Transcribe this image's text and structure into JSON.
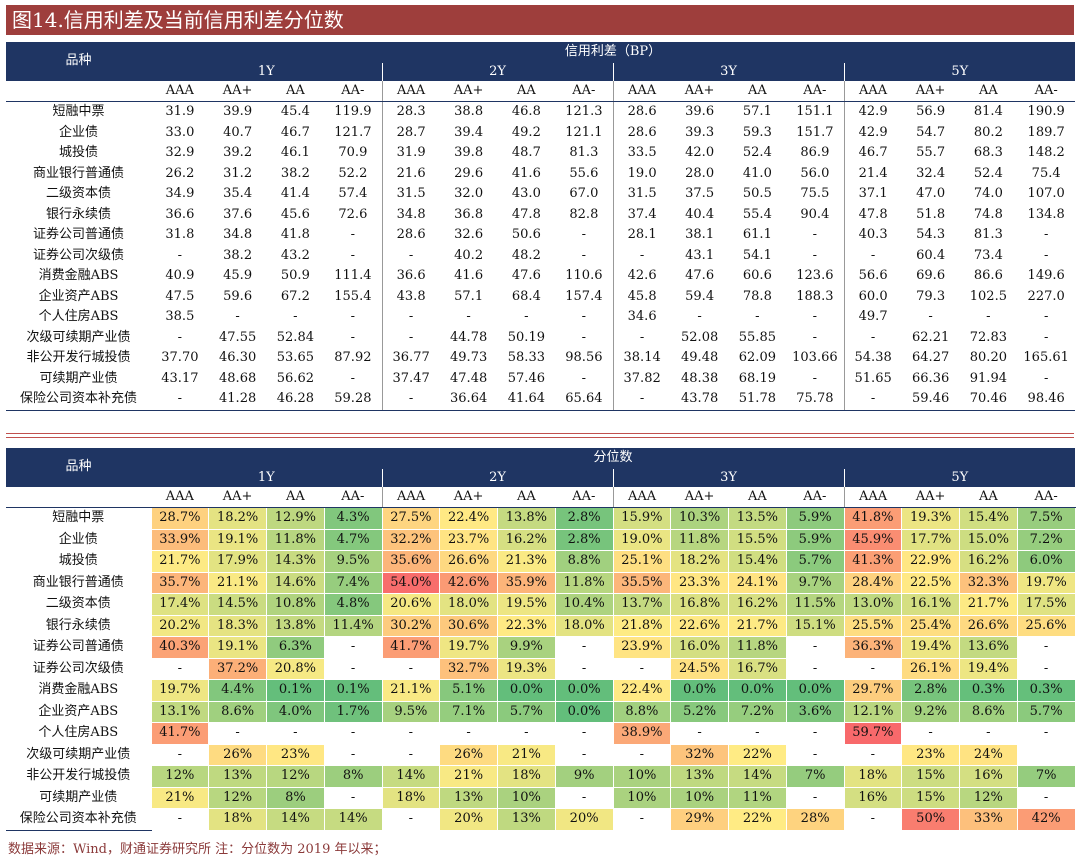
{
  "title": "图14.信用利差及当前信用利差分位数",
  "source_note": "数据来源：Wind，财通证券研究所   注：分位数为 2019 年以来；",
  "table_spread": {
    "kind_label": "品种",
    "group_label": "信用利差（BP）",
    "tenors": [
      "1Y",
      "2Y",
      "3Y",
      "5Y"
    ],
    "ratings": [
      "AAA",
      "AA+",
      "AA",
      "AA-"
    ],
    "rows": [
      {
        "name": "短融中票",
        "values": [
          "31.9",
          "39.9",
          "45.4",
          "119.9",
          "28.3",
          "38.8",
          "46.8",
          "121.3",
          "28.6",
          "39.6",
          "57.1",
          "151.1",
          "42.9",
          "56.9",
          "81.4",
          "190.9"
        ]
      },
      {
        "name": "企业债",
        "values": [
          "33.0",
          "40.7",
          "46.7",
          "121.7",
          "28.7",
          "39.4",
          "49.2",
          "121.1",
          "28.6",
          "39.3",
          "59.3",
          "151.7",
          "42.9",
          "54.7",
          "80.2",
          "189.7"
        ]
      },
      {
        "name": "城投债",
        "values": [
          "32.9",
          "39.2",
          "46.1",
          "70.9",
          "31.9",
          "39.8",
          "48.7",
          "81.3",
          "33.5",
          "42.0",
          "52.4",
          "86.9",
          "46.7",
          "55.7",
          "68.3",
          "148.2"
        ]
      },
      {
        "name": "商业银行普通债",
        "values": [
          "26.2",
          "31.2",
          "38.2",
          "52.2",
          "21.6",
          "29.6",
          "41.6",
          "55.6",
          "19.0",
          "28.0",
          "41.0",
          "56.0",
          "21.4",
          "32.4",
          "52.4",
          "75.4"
        ]
      },
      {
        "name": "二级资本债",
        "values": [
          "34.9",
          "35.4",
          "41.4",
          "57.4",
          "31.5",
          "32.0",
          "43.0",
          "67.0",
          "31.5",
          "37.5",
          "50.5",
          "75.5",
          "37.1",
          "47.0",
          "74.0",
          "107.0"
        ]
      },
      {
        "name": "银行永续债",
        "values": [
          "36.6",
          "37.6",
          "45.6",
          "72.6",
          "34.8",
          "36.8",
          "47.8",
          "82.8",
          "37.4",
          "40.4",
          "55.4",
          "90.4",
          "47.8",
          "51.8",
          "74.8",
          "134.8"
        ]
      },
      {
        "name": "证券公司普通债",
        "values": [
          "31.8",
          "34.8",
          "41.8",
          "-",
          "28.6",
          "32.6",
          "50.6",
          "-",
          "28.1",
          "38.1",
          "61.1",
          "-",
          "40.3",
          "54.3",
          "81.3",
          "-"
        ]
      },
      {
        "name": "证券公司次级债",
        "values": [
          "-",
          "38.2",
          "43.2",
          "-",
          "-",
          "40.2",
          "48.2",
          "-",
          "-",
          "43.1",
          "54.1",
          "-",
          "-",
          "60.4",
          "73.4",
          "-"
        ]
      },
      {
        "name": "消费金融ABS",
        "values": [
          "40.9",
          "45.9",
          "50.9",
          "111.4",
          "36.6",
          "41.6",
          "47.6",
          "110.6",
          "42.6",
          "47.6",
          "60.6",
          "123.6",
          "56.6",
          "69.6",
          "86.6",
          "149.6"
        ]
      },
      {
        "name": "企业资产ABS",
        "values": [
          "47.5",
          "59.6",
          "67.2",
          "155.4",
          "43.8",
          "57.1",
          "68.4",
          "157.4",
          "45.8",
          "59.4",
          "78.8",
          "188.3",
          "60.0",
          "79.3",
          "102.5",
          "227.0"
        ]
      },
      {
        "name": "个人住房ABS",
        "values": [
          "38.5",
          "-",
          "-",
          "-",
          "-",
          "-",
          "-",
          "-",
          "34.6",
          "-",
          "-",
          "-",
          "49.7",
          "-",
          "-",
          "-"
        ]
      },
      {
        "name": "次级可续期产业债",
        "values": [
          "-",
          "47.55",
          "52.84",
          "-",
          "-",
          "44.78",
          "50.19",
          "-",
          "-",
          "52.08",
          "55.85",
          "-",
          "-",
          "62.21",
          "72.83",
          "-"
        ]
      },
      {
        "name": "非公开发行城投债",
        "values": [
          "37.70",
          "46.30",
          "53.65",
          "87.92",
          "36.77",
          "49.73",
          "58.33",
          "98.56",
          "38.14",
          "49.48",
          "62.09",
          "103.66",
          "54.38",
          "64.27",
          "80.20",
          "165.61"
        ]
      },
      {
        "name": "可续期产业债",
        "values": [
          "43.17",
          "48.68",
          "56.62",
          "-",
          "37.47",
          "47.48",
          "57.46",
          "-",
          "37.82",
          "48.38",
          "68.19",
          "-",
          "51.65",
          "66.36",
          "91.94",
          "-"
        ]
      },
      {
        "name": "保险公司资本补充债",
        "values": [
          "-",
          "41.28",
          "46.28",
          "59.28",
          "-",
          "36.64",
          "41.64",
          "65.64",
          "-",
          "43.78",
          "51.78",
          "75.78",
          "-",
          "59.46",
          "70.46",
          "98.46"
        ]
      }
    ]
  },
  "table_pct": {
    "kind_label": "品种",
    "group_label": "分位数",
    "tenors": [
      "1Y",
      "2Y",
      "3Y",
      "5Y"
    ],
    "ratings": [
      "AAA",
      "AA+",
      "AA",
      "AA-"
    ],
    "rows": [
      {
        "name": "短融中票",
        "values": [
          "28.7%",
          "18.2%",
          "12.9%",
          "4.3%",
          "27.5%",
          "22.4%",
          "13.8%",
          "2.8%",
          "15.9%",
          "10.3%",
          "13.5%",
          "5.9%",
          "41.8%",
          "19.3%",
          "15.4%",
          "7.5%"
        ]
      },
      {
        "name": "企业债",
        "values": [
          "33.9%",
          "19.1%",
          "11.8%",
          "4.7%",
          "32.2%",
          "23.7%",
          "16.2%",
          "2.8%",
          "19.0%",
          "11.8%",
          "15.5%",
          "5.9%",
          "45.9%",
          "17.7%",
          "15.0%",
          "7.2%"
        ]
      },
      {
        "name": "城投债",
        "values": [
          "21.7%",
          "17.9%",
          "14.3%",
          "9.5%",
          "35.6%",
          "26.6%",
          "21.3%",
          "8.8%",
          "25.1%",
          "18.2%",
          "15.4%",
          "5.7%",
          "41.3%",
          "22.9%",
          "16.2%",
          "6.0%"
        ]
      },
      {
        "name": "商业银行普通债",
        "values": [
          "35.7%",
          "21.1%",
          "14.6%",
          "7.4%",
          "54.0%",
          "42.6%",
          "35.9%",
          "11.8%",
          "35.5%",
          "23.3%",
          "24.1%",
          "9.7%",
          "28.4%",
          "22.5%",
          "32.3%",
          "19.7%"
        ]
      },
      {
        "name": "二级资本债",
        "values": [
          "17.4%",
          "14.5%",
          "10.8%",
          "4.8%",
          "20.6%",
          "18.0%",
          "19.5%",
          "10.4%",
          "13.7%",
          "16.8%",
          "16.2%",
          "11.5%",
          "13.0%",
          "16.1%",
          "21.7%",
          "17.5%"
        ]
      },
      {
        "name": "银行永续债",
        "values": [
          "20.2%",
          "18.3%",
          "13.8%",
          "11.4%",
          "30.2%",
          "30.6%",
          "22.3%",
          "18.0%",
          "21.8%",
          "22.6%",
          "21.7%",
          "15.1%",
          "25.5%",
          "25.4%",
          "26.6%",
          "25.6%"
        ]
      },
      {
        "name": "证券公司普通债",
        "values": [
          "40.3%",
          "19.1%",
          "6.3%",
          "-",
          "41.7%",
          "19.7%",
          "9.9%",
          "-",
          "23.9%",
          "16.0%",
          "11.8%",
          "-",
          "36.3%",
          "19.4%",
          "13.6%",
          "-"
        ]
      },
      {
        "name": "证券公司次级债",
        "values": [
          "-",
          "37.2%",
          "20.8%",
          "-",
          "-",
          "32.7%",
          "19.3%",
          "-",
          "-",
          "24.5%",
          "16.7%",
          "-",
          "-",
          "26.1%",
          "19.4%",
          "-"
        ]
      },
      {
        "name": "消费金融ABS",
        "values": [
          "19.7%",
          "4.4%",
          "0.1%",
          "0.1%",
          "21.1%",
          "5.1%",
          "0.0%",
          "0.0%",
          "22.4%",
          "0.0%",
          "0.0%",
          "0.0%",
          "29.7%",
          "2.8%",
          "0.3%",
          "0.3%"
        ]
      },
      {
        "name": "企业资产ABS",
        "values": [
          "13.1%",
          "8.6%",
          "4.0%",
          "1.7%",
          "9.5%",
          "7.1%",
          "5.7%",
          "0.0%",
          "8.8%",
          "5.2%",
          "7.2%",
          "3.6%",
          "12.1%",
          "9.2%",
          "8.6%",
          "5.7%"
        ]
      },
      {
        "name": "个人住房ABS",
        "values": [
          "41.7%",
          "-",
          "-",
          "-",
          "-",
          "-",
          "-",
          "-",
          "38.9%",
          "-",
          "-",
          "-",
          "59.7%",
          "-",
          "-",
          "-"
        ]
      },
      {
        "name": "次级可续期产业债",
        "values": [
          "-",
          "26%",
          "23%",
          "-",
          "-",
          "26%",
          "21%",
          "-",
          "-",
          "32%",
          "22%",
          "-",
          "-",
          "23%",
          "24%",
          ""
        ]
      },
      {
        "name": "非公开发行城投债",
        "values": [
          "12%",
          "13%",
          "12%",
          "8%",
          "14%",
          "21%",
          "18%",
          "9%",
          "10%",
          "13%",
          "14%",
          "7%",
          "18%",
          "15%",
          "16%",
          "7%"
        ]
      },
      {
        "name": "可续期产业债",
        "values": [
          "21%",
          "12%",
          "8%",
          "-",
          "18%",
          "13%",
          "10%",
          "-",
          "10%",
          "10%",
          "11%",
          "-",
          "16%",
          "15%",
          "12%",
          "-"
        ]
      },
      {
        "name": "保险公司资本补充债",
        "values": [
          "-",
          "18%",
          "14%",
          "14%",
          "-",
          "20%",
          "13%",
          "20%",
          "-",
          "29%",
          "22%",
          "28%",
          "-",
          "50%",
          "33%",
          "42%"
        ]
      }
    ]
  }
}
